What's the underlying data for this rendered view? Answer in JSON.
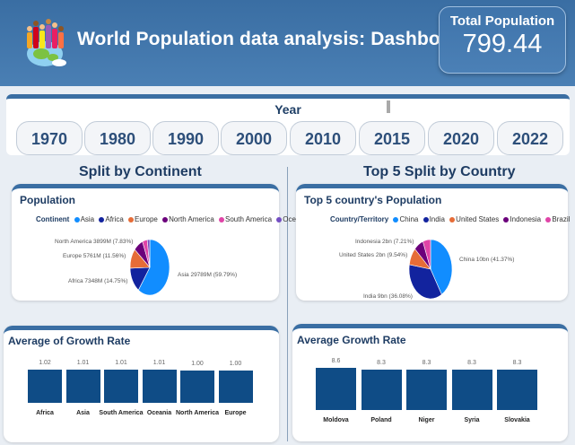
{
  "header": {
    "title": "World Population data analysis: Dashboard",
    "kpi_label": "Total Population",
    "kpi_value": "799.44"
  },
  "year_slicer": {
    "title": "Year",
    "years": [
      "1970",
      "1980",
      "1990",
      "2000",
      "2010",
      "2015",
      "2020",
      "2022"
    ]
  },
  "sections": {
    "left_title": "Split by Continent",
    "right_title": "Top 5 Split by Country"
  },
  "continent_pie": {
    "title": "Population",
    "legend_label": "Continent",
    "slices": [
      {
        "name": "Asia",
        "label": "Asia 29789M (59.79%)",
        "value": 59.79,
        "color": "#118dff"
      },
      {
        "name": "Africa",
        "label": "Africa 7348M (14.75%)",
        "value": 14.75,
        "color": "#12239e"
      },
      {
        "name": "Europe",
        "label": "Europe 5761M (11.56%)",
        "value": 11.56,
        "color": "#e66c37"
      },
      {
        "name": "North America",
        "label": "North America 3899M (7.83%)",
        "value": 7.83,
        "color": "#6b007b"
      },
      {
        "name": "South America",
        "label": "",
        "value": 4.0,
        "color": "#e044a7"
      },
      {
        "name": "Oceania",
        "label": "",
        "value": 2.07,
        "color": "#744ec2"
      }
    ]
  },
  "country_pie": {
    "title": "Top 5 country's Population",
    "legend_label": "Country/Territory",
    "slices": [
      {
        "name": "China",
        "label": "China 10bn (41.37%)",
        "value": 41.37,
        "color": "#118dff"
      },
      {
        "name": "India",
        "label": "India 9bn (36.08%)",
        "value": 36.08,
        "color": "#12239e"
      },
      {
        "name": "United States",
        "label": "United States 2bn (9.54%)",
        "value": 9.54,
        "color": "#e66c37"
      },
      {
        "name": "Indonesia",
        "label": "Indonesia 2bn (7.21%)",
        "value": 7.21,
        "color": "#6b007b"
      },
      {
        "name": "Brazil",
        "label": "",
        "value": 5.8,
        "color": "#e044a7"
      }
    ]
  },
  "continent_growth": {
    "title": "Average of Growth Rate",
    "chart_data": {
      "type": "bar",
      "categories": [
        "Africa",
        "Asia",
        "South America",
        "Oceania",
        "North America",
        "Europe"
      ],
      "values": [
        1.02,
        1.01,
        1.01,
        1.01,
        1.0,
        1.0
      ],
      "value_labels": [
        "1.02",
        "1.01",
        "1.01",
        "1.01",
        "1.00",
        "1.00"
      ],
      "color": "#0f4c86"
    }
  },
  "country_growth": {
    "title": "Average Growth Rate",
    "chart_data": {
      "type": "bar",
      "categories": [
        "Moldova",
        "Poland",
        "Niger",
        "Syria",
        "Slovakia"
      ],
      "values": [
        8.6,
        8.3,
        8.3,
        8.3,
        8.3
      ],
      "value_labels": [
        "8.6",
        "8.3",
        "8.3",
        "8.3",
        "8.3"
      ],
      "color": "#0f4c86"
    }
  }
}
